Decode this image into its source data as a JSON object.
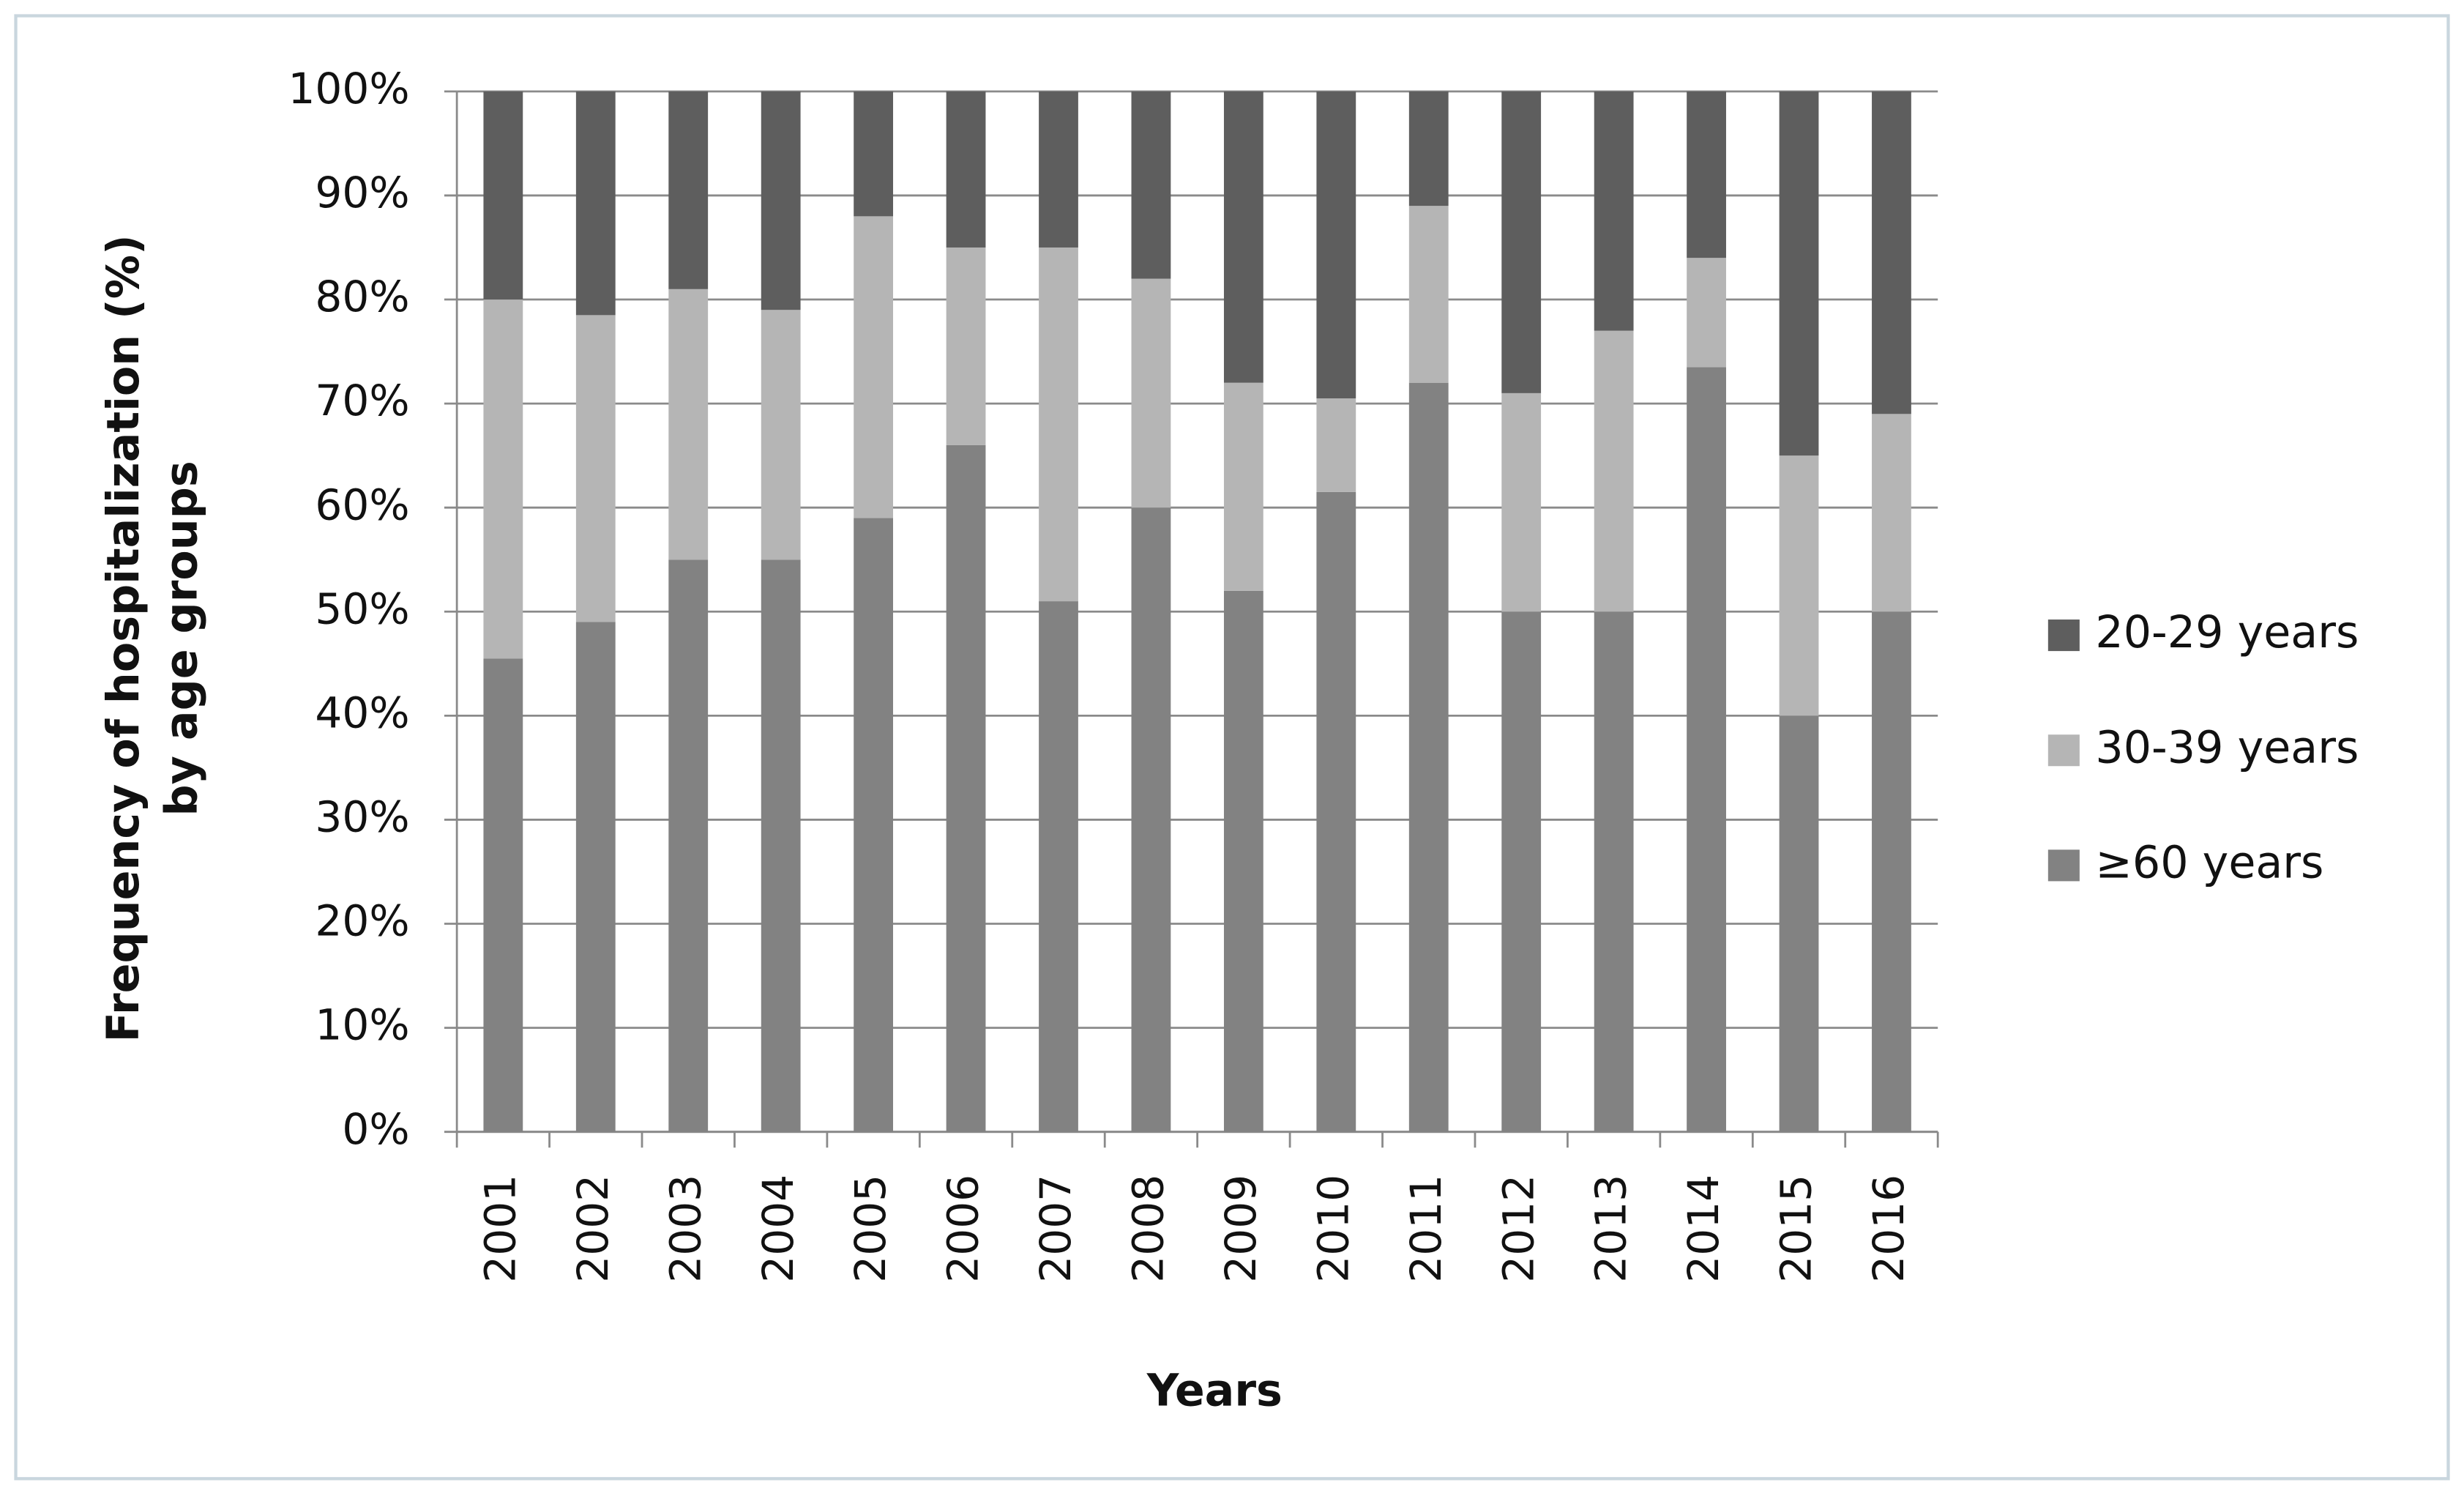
{
  "chart_data": {
    "type": "stacked-bar",
    "x_label": "Years",
    "y_label": [
      "Frequency of hospitalization (%)",
      "by age groups"
    ],
    "categories": [
      "2001",
      "2002",
      "2003",
      "2004",
      "2005",
      "2006",
      "2007",
      "2008",
      "2009",
      "2010",
      "2011",
      "2012",
      "2013",
      "2014",
      "2015",
      "2016"
    ],
    "series": [
      {
        "name": "≥60 years",
        "color": "#828282",
        "values": [
          45.5,
          49,
          55,
          55,
          59,
          66,
          51,
          60,
          52,
          61.5,
          72,
          50,
          50,
          73.5,
          40,
          50
        ]
      },
      {
        "name": "30-39 years",
        "color": "#b5b5b5",
        "values": [
          34.5,
          29.5,
          26,
          24,
          29,
          19,
          34,
          22,
          20,
          9,
          17,
          21,
          27,
          10.5,
          25,
          19
        ]
      },
      {
        "name": "20-29 years",
        "color": "#5e5e5e",
        "values": [
          20,
          21.5,
          19,
          21,
          12,
          15,
          15,
          18,
          28,
          29.5,
          11,
          29,
          23,
          16,
          35,
          31
        ]
      }
    ],
    "ylim": [
      0,
      100
    ],
    "yticks": [
      {
        "value": 0,
        "label": "0%"
      },
      {
        "value": 10,
        "label": "10%"
      },
      {
        "value": 20,
        "label": "20%"
      },
      {
        "value": 30,
        "label": "30%"
      },
      {
        "value": 40,
        "label": "40%"
      },
      {
        "value": 50,
        "label": "50%"
      },
      {
        "value": 60,
        "label": "60%"
      },
      {
        "value": 70,
        "label": "70%"
      },
      {
        "value": 80,
        "label": "80%"
      },
      {
        "value": 90,
        "label": "90%"
      },
      {
        "value": 100,
        "label": "100%"
      }
    ],
    "grid": true,
    "legend": "right"
  }
}
